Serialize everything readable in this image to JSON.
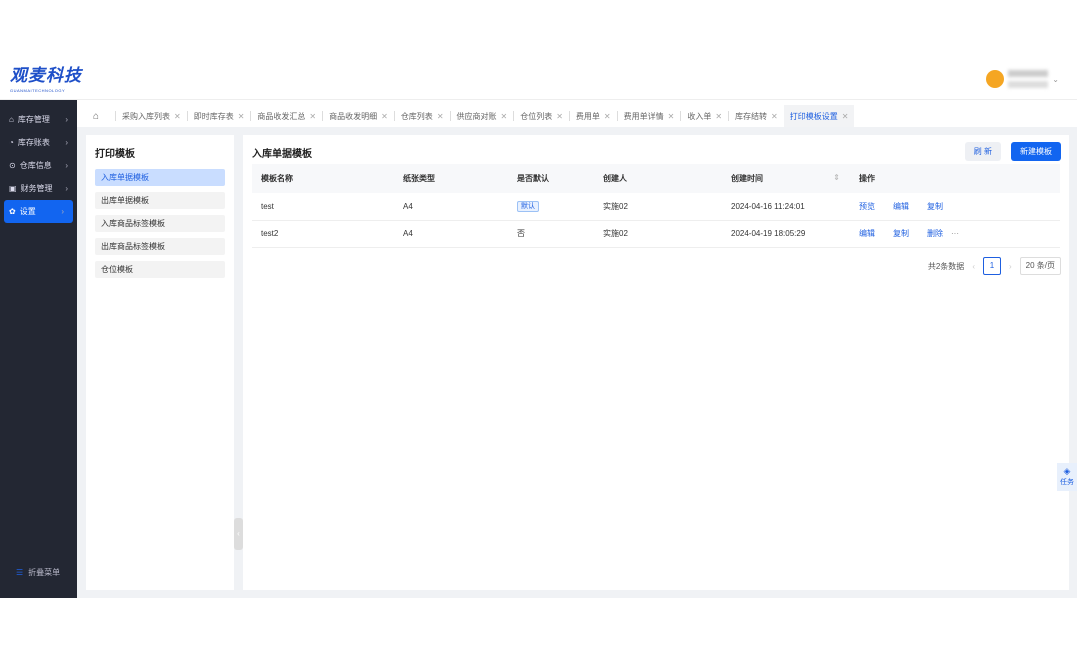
{
  "header": {
    "logo": "观麦科技",
    "logo_sub": "GUANMAITECHNOLOGY"
  },
  "sidebar": {
    "items": [
      {
        "label": "库存管理",
        "icon": "home-icon"
      },
      {
        "label": "库存账表",
        "icon": "chart-icon"
      },
      {
        "label": "仓库信息",
        "icon": "location-icon"
      },
      {
        "label": "财务管理",
        "icon": "finance-icon"
      },
      {
        "label": "设置",
        "icon": "gear-icon",
        "active": true
      }
    ],
    "collapse": "折叠菜单"
  },
  "tabs": [
    "采购入库列表",
    "即时库存表",
    "商品收发汇总",
    "商品收发明细",
    "仓库列表",
    "供应商对账",
    "仓位列表",
    "费用单",
    "费用单详情",
    "收入单",
    "库存结转",
    "打印模板设置"
  ],
  "active_tab": "打印模板设置",
  "left_panel": {
    "title": "打印模板",
    "items": [
      "入库单据模板",
      "出库单据模板",
      "入库商品标签模板",
      "出库商品标签模板",
      "仓位模板"
    ]
  },
  "right_panel": {
    "title": "入库单据模板",
    "refresh": "刷 新",
    "new": "新建模板",
    "columns": [
      "模板名称",
      "纸张类型",
      "是否默认",
      "创建人",
      "创建时间",
      "操作"
    ],
    "rows": [
      {
        "name": "test",
        "paper": "A4",
        "default": "默认",
        "creator": "实施02",
        "time": "2024-04-16 11:24:01",
        "ops": [
          "预览",
          "编辑",
          "复制"
        ]
      },
      {
        "name": "test2",
        "paper": "A4",
        "default": "否",
        "creator": "实施02",
        "time": "2024-04-19 18:05:29",
        "ops": [
          "编辑",
          "复制",
          "删除",
          "···"
        ]
      }
    ],
    "pager": {
      "total": "共2条数据",
      "page": "1",
      "size": "20 条/页"
    }
  },
  "task": "任务",
  "colors": {
    "accent": "#1265f0",
    "sidebar": "#232733"
  }
}
